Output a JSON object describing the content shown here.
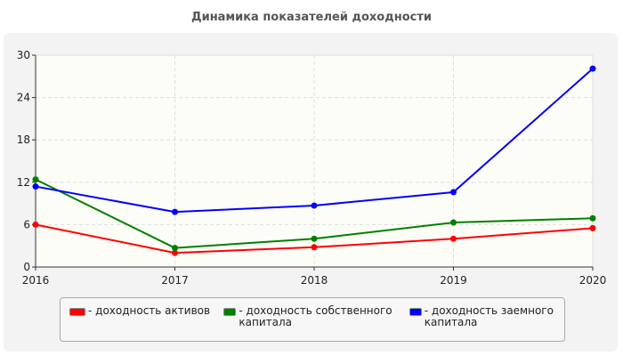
{
  "chart_data": {
    "type": "line",
    "title": "Динамика показателей доходности",
    "x": [
      "2016",
      "2017",
      "2018",
      "2019",
      "2020"
    ],
    "ylim": [
      0,
      30
    ],
    "yticks": [
      "0",
      "6",
      "12",
      "18",
      "24",
      "30"
    ],
    "grid": true,
    "legend_position": "bottom",
    "series": [
      {
        "name": "- доходность активов",
        "color": "#ff0000",
        "values": [
          6.0,
          2.0,
          2.8,
          4.0,
          5.5
        ]
      },
      {
        "name": "- доходность собственного капитала",
        "color": "#008000",
        "values": [
          12.4,
          2.7,
          4.0,
          6.3,
          6.9
        ]
      },
      {
        "name": "- доходность заемного капитала",
        "color": "#0000ff",
        "values": [
          11.4,
          7.8,
          8.7,
          10.6,
          28.1
        ]
      }
    ]
  }
}
